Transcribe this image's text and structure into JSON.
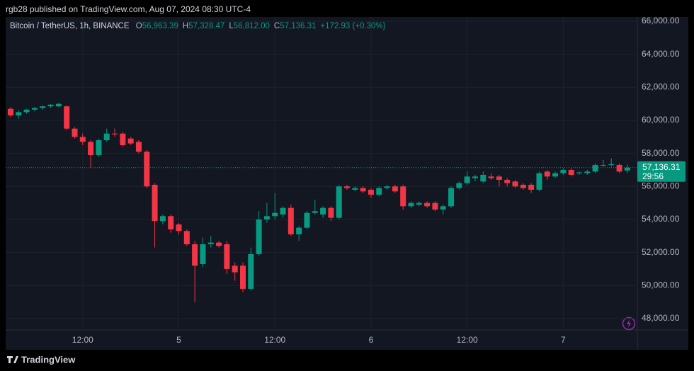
{
  "header": {
    "publisher_line": "rgb28 published on TradingView.com, Aug 07, 2024 08:30 UTC-4"
  },
  "chart_data": {
    "type": "candlestick",
    "symbol": "Bitcoin / TetherUS, 1h, BINANCE",
    "ohlc_legend": [
      {
        "key": "O",
        "text": "56,963.39"
      },
      {
        "key": "H",
        "text": "57,328.47"
      },
      {
        "key": "L",
        "text": "56,812.00"
      },
      {
        "key": "C",
        "text": "57,136.31"
      }
    ],
    "change": "+172.93 (+0.30%)",
    "categories": [
      null,
      null,
      null,
      null,
      null,
      null,
      null,
      null,
      null,
      "12:00",
      null,
      null,
      null,
      null,
      null,
      null,
      null,
      null,
      null,
      null,
      null,
      "5",
      null,
      null,
      null,
      null,
      null,
      null,
      null,
      null,
      null,
      null,
      null,
      "12:00",
      null,
      null,
      null,
      null,
      null,
      null,
      null,
      null,
      null,
      null,
      null,
      "6",
      null,
      null,
      null,
      null,
      null,
      null,
      null,
      null,
      null,
      null,
      null,
      "12:00",
      null,
      null,
      null,
      null,
      null,
      null,
      null,
      null,
      null,
      null,
      null,
      "7",
      null,
      null,
      null,
      null,
      null,
      null,
      null,
      null
    ],
    "open": [
      60700,
      60300,
      60500,
      60650,
      60750,
      60850,
      60850,
      60850,
      59500,
      59000,
      58700,
      57900,
      58800,
      59200,
      59200,
      58900,
      58700,
      58100,
      56100,
      53900,
      54200,
      53700,
      53300,
      52500,
      51300,
      52500,
      52600,
      52500,
      51200,
      51200,
      49800,
      51900,
      54000,
      54200,
      54300,
      54700,
      53100,
      53500,
      54400,
      54300,
      54700,
      54100,
      56000,
      55800,
      55900,
      55800,
      55500,
      55900,
      56000,
      56000,
      54800,
      54900,
      55000,
      55000,
      54600,
      54800,
      55900,
      56200,
      56500,
      56300,
      56600,
      56600,
      56400,
      56300,
      56100,
      56100,
      55800,
      56900,
      56600,
      56800,
      57000,
      56800,
      56800,
      56900,
      57300,
      57300,
      57300,
      56963.39
    ],
    "high": [
      60800,
      60600,
      60700,
      60800,
      60900,
      61000,
      61050,
      60900,
      59600,
      59200,
      58800,
      58900,
      59500,
      59500,
      59300,
      59000,
      58800,
      58200,
      56200,
      54300,
      54300,
      53800,
      53400,
      52700,
      52900,
      53000,
      52700,
      52700,
      51400,
      51400,
      52300,
      54500,
      55000,
      55600,
      54800,
      54900,
      53600,
      54500,
      55200,
      54800,
      54800,
      56100,
      56100,
      56000,
      56000,
      55900,
      56000,
      56100,
      56100,
      56100,
      55100,
      55100,
      55100,
      55100,
      54900,
      56000,
      56300,
      56900,
      56700,
      56900,
      56800,
      56700,
      56500,
      56400,
      56200,
      56200,
      56900,
      57000,
      56900,
      57100,
      57100,
      56900,
      57000,
      57400,
      57600,
      57700,
      57400,
      57328.47
    ],
    "low": [
      60200,
      60100,
      60400,
      60550,
      60650,
      60750,
      60800,
      59400,
      58900,
      58500,
      57100,
      57800,
      58700,
      59000,
      58400,
      58500,
      58000,
      55900,
      52300,
      53700,
      53200,
      53100,
      52400,
      49000,
      51100,
      52300,
      52300,
      50700,
      50300,
      49600,
      49700,
      51800,
      53800,
      54000,
      54100,
      53000,
      52700,
      53400,
      54300,
      54100,
      53900,
      54000,
      55800,
      55700,
      55600,
      55300,
      55400,
      55800,
      55600,
      54600,
      54700,
      54800,
      54700,
      54500,
      54300,
      54700,
      55800,
      56100,
      56300,
      56200,
      56400,
      56000,
      56000,
      55900,
      55800,
      55600,
      55700,
      56400,
      56500,
      56700,
      56600,
      56700,
      56700,
      56800,
      57200,
      57200,
      56800,
      56812
    ],
    "close": [
      60300,
      60500,
      60650,
      60750,
      60850,
      60950,
      61000,
      59500,
      59000,
      58700,
      57900,
      58800,
      59200,
      59150,
      58500,
      58600,
      58100,
      56000,
      53900,
      54200,
      53400,
      53300,
      52500,
      51200,
      52500,
      52600,
      52400,
      51000,
      50800,
      49800,
      51900,
      54000,
      54200,
      54400,
      54700,
      53100,
      53500,
      54400,
      54500,
      54700,
      54100,
      56000,
      55900,
      55900,
      55700,
      55500,
      55900,
      56000,
      55700,
      54800,
      55000,
      55000,
      54800,
      54600,
      54800,
      55900,
      56200,
      56600,
      56600,
      56700,
      56500,
      56400,
      56200,
      56000,
      55900,
      55800,
      56800,
      56600,
      56800,
      57000,
      56700,
      56850,
      56900,
      57300,
      57300,
      57350,
      56900,
      57136.31
    ],
    "up_color": "#089981",
    "down_color": "#f23645",
    "ylim": [
      47310,
      66260
    ],
    "yticks": [
      {
        "value": 48000,
        "label": "48,000.00"
      },
      {
        "value": 50000,
        "label": "50,000.00"
      },
      {
        "value": 52000,
        "label": "52,000.00"
      },
      {
        "value": 54000,
        "label": "54,000.00"
      },
      {
        "value": 56000,
        "label": "56,000.00"
      },
      {
        "value": 58000,
        "label": "58,000.00"
      },
      {
        "value": 60000,
        "label": "60,000.00"
      },
      {
        "value": 62000,
        "label": "62,000.00"
      },
      {
        "value": 64000,
        "label": "64,000.00"
      },
      {
        "value": 66000,
        "label": "66,000.00"
      }
    ],
    "grid": true,
    "last_price": {
      "value": 57136.31,
      "label": "57,136.31"
    },
    "countdown": "29:56"
  },
  "footer": {
    "brand": "TradingView"
  }
}
